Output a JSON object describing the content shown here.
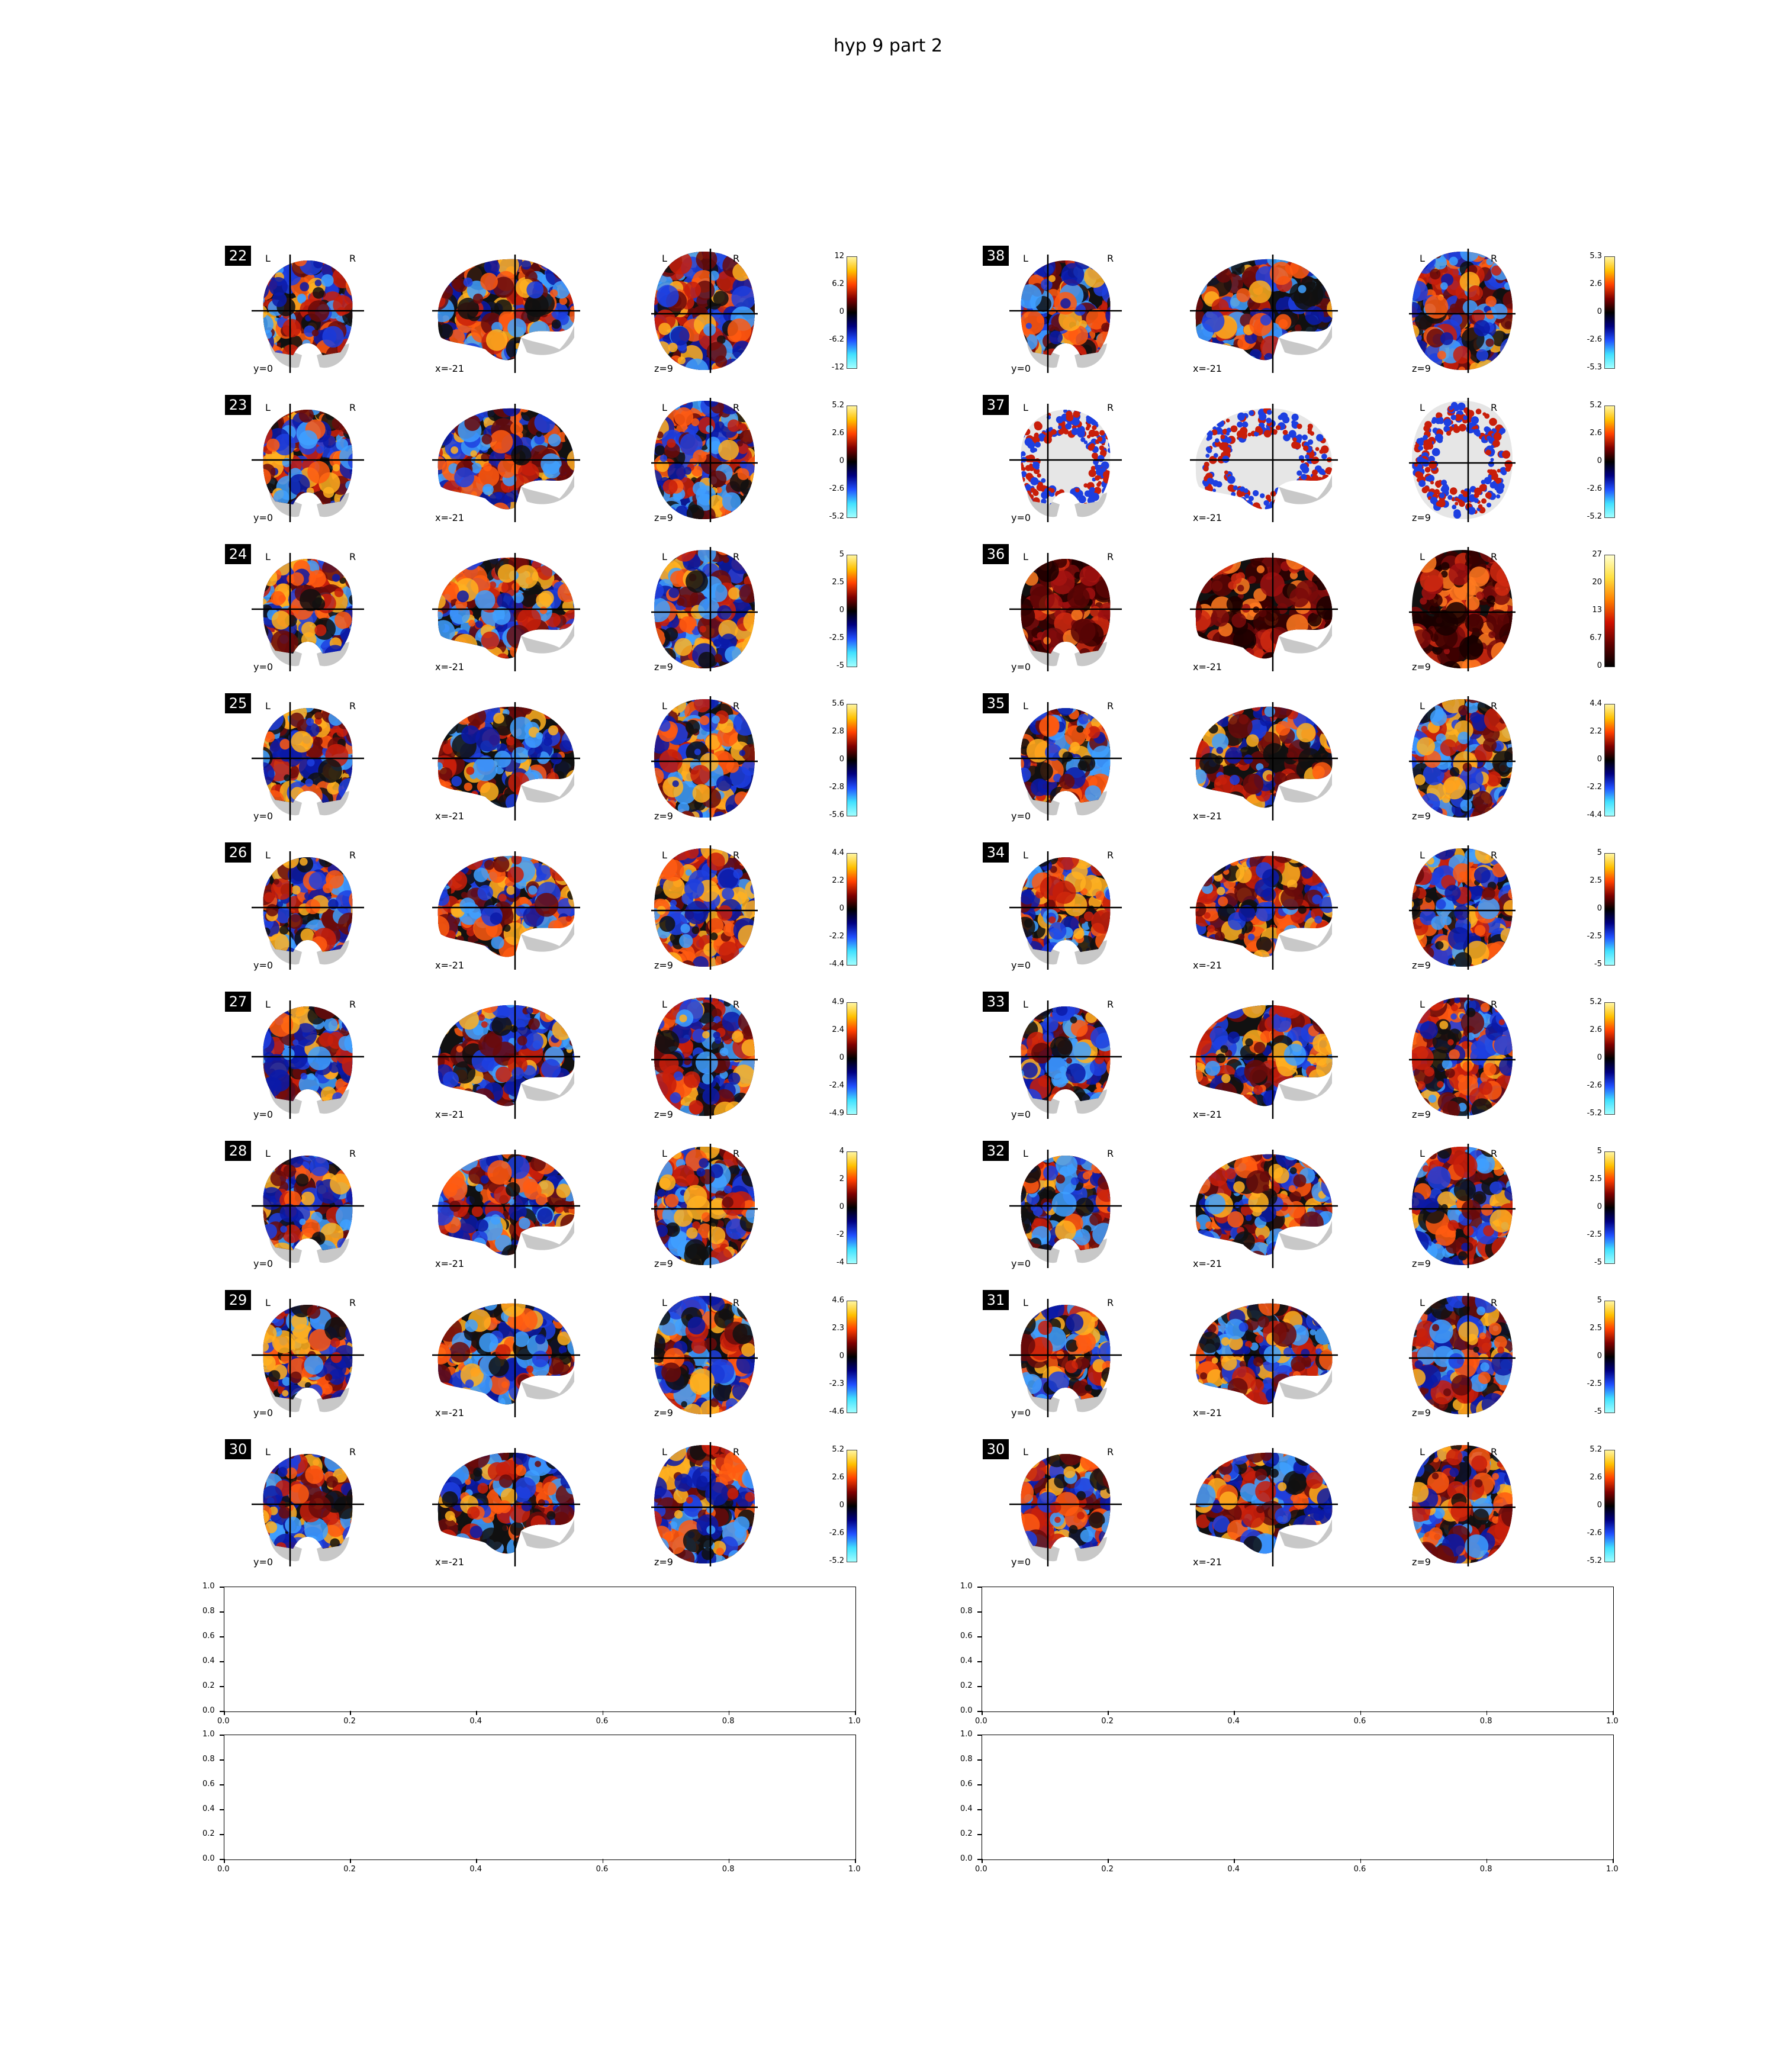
{
  "figure": {
    "title": "hyp 9 part 2",
    "columns": [
      {
        "panels": [
          {
            "id": "22",
            "ticks": [
              "12",
              "6.2",
              "0",
              "-6.2",
              "-12"
            ],
            "coords": [
              "y=0",
              "x=-21",
              "z=9"
            ],
            "labels": [
              "L",
              "R",
              "L",
              "R"
            ],
            "cmap": "diverging"
          },
          {
            "id": "23",
            "ticks": [
              "5.2",
              "2.6",
              "0",
              "-2.6",
              "-5.2"
            ],
            "coords": [
              "y=0",
              "x=-21",
              "z=9"
            ],
            "labels": [
              "L",
              "R",
              "L",
              "R"
            ],
            "cmap": "diverging"
          },
          {
            "id": "24",
            "ticks": [
              "5",
              "2.5",
              "0",
              "-2.5",
              "-5"
            ],
            "coords": [
              "y=0",
              "x=-21",
              "z=9"
            ],
            "labels": [
              "L",
              "R",
              "L",
              "R"
            ],
            "cmap": "diverging"
          },
          {
            "id": "25",
            "ticks": [
              "5.6",
              "2.8",
              "0",
              "-2.8",
              "-5.6"
            ],
            "coords": [
              "y=0",
              "x=-21",
              "z=9"
            ],
            "labels": [
              "L",
              "R",
              "L",
              "R"
            ],
            "cmap": "diverging"
          },
          {
            "id": "26",
            "ticks": [
              "4.4",
              "2.2",
              "0",
              "-2.2",
              "-4.4"
            ],
            "coords": [
              "y=0",
              "x=-21",
              "z=9"
            ],
            "labels": [
              "L",
              "R",
              "L",
              "R"
            ],
            "cmap": "diverging"
          },
          {
            "id": "27",
            "ticks": [
              "4.9",
              "2.4",
              "0",
              "-2.4",
              "-4.9"
            ],
            "coords": [
              "y=0",
              "x=-21",
              "z=9"
            ],
            "labels": [
              "L",
              "R",
              "L",
              "R"
            ],
            "cmap": "diverging"
          },
          {
            "id": "28",
            "ticks": [
              "4",
              "2",
              "0",
              "-2",
              "-4"
            ],
            "coords": [
              "y=0",
              "x=-21",
              "z=9"
            ],
            "labels": [
              "L",
              "R",
              "L",
              "R"
            ],
            "cmap": "diverging"
          },
          {
            "id": "29",
            "ticks": [
              "4.6",
              "2.3",
              "0",
              "-2.3",
              "-4.6"
            ],
            "coords": [
              "y=0",
              "x=-21",
              "z=9"
            ],
            "labels": [
              "L",
              "R",
              "L",
              "R"
            ],
            "cmap": "diverging"
          },
          {
            "id": "30",
            "ticks": [
              "5.2",
              "2.6",
              "0",
              "-2.6",
              "-5.2"
            ],
            "coords": [
              "y=0",
              "x=-21",
              "z=9"
            ],
            "labels": [
              "L",
              "R",
              "L",
              "R"
            ],
            "cmap": "diverging"
          }
        ]
      },
      {
        "panels": [
          {
            "id": "38",
            "ticks": [
              "5.3",
              "2.6",
              "0",
              "-2.6",
              "-5.3"
            ],
            "coords": [
              "y=0",
              "x=-21",
              "z=9"
            ],
            "labels": [
              "L",
              "R",
              "L",
              "R"
            ],
            "cmap": "diverging"
          },
          {
            "id": "37",
            "ticks": [
              "5.2",
              "2.6",
              "0",
              "-2.6",
              "-5.2"
            ],
            "coords": [
              "y=0",
              "x=-21",
              "z=9"
            ],
            "labels": [
              "L",
              "R",
              "L",
              "R"
            ],
            "cmap": "sparse"
          },
          {
            "id": "36",
            "ticks": [
              "27",
              "20",
              "13",
              "6.7",
              "0"
            ],
            "coords": [
              "y=0",
              "x=-21",
              "z=9"
            ],
            "labels": [
              "L",
              "R",
              "L",
              "R"
            ],
            "cmap": "hot"
          },
          {
            "id": "35",
            "ticks": [
              "4.4",
              "2.2",
              "0",
              "-2.2",
              "-4.4"
            ],
            "coords": [
              "y=0",
              "x=-21",
              "z=9"
            ],
            "labels": [
              "L",
              "R",
              "L",
              "R"
            ],
            "cmap": "diverging"
          },
          {
            "id": "34",
            "ticks": [
              "5",
              "2.5",
              "0",
              "-2.5",
              "-5"
            ],
            "coords": [
              "y=0",
              "x=-21",
              "z=9"
            ],
            "labels": [
              "L",
              "R",
              "L",
              "R"
            ],
            "cmap": "diverging"
          },
          {
            "id": "33",
            "ticks": [
              "5.2",
              "2.6",
              "0",
              "-2.6",
              "-5.2"
            ],
            "coords": [
              "y=0",
              "x=-21",
              "z=9"
            ],
            "labels": [
              "L",
              "R",
              "L",
              "R"
            ],
            "cmap": "diverging"
          },
          {
            "id": "32",
            "ticks": [
              "5",
              "2.5",
              "0",
              "-2.5",
              "-5"
            ],
            "coords": [
              "y=0",
              "x=-21",
              "z=9"
            ],
            "labels": [
              "L",
              "R",
              "L",
              "R"
            ],
            "cmap": "diverging"
          },
          {
            "id": "31",
            "ticks": [
              "5",
              "2.5",
              "0",
              "-2.5",
              "-5"
            ],
            "coords": [
              "y=0",
              "x=-21",
              "z=9"
            ],
            "labels": [
              "L",
              "R",
              "L",
              "R"
            ],
            "cmap": "diverging"
          },
          {
            "id": "30",
            "ticks": [
              "5.2",
              "2.6",
              "0",
              "-2.6",
              "-5.2"
            ],
            "coords": [
              "y=0",
              "x=-21",
              "z=9"
            ],
            "labels": [
              "L",
              "R",
              "L",
              "R"
            ],
            "cmap": "diverging"
          }
        ]
      }
    ],
    "empty_axes": {
      "count": 4,
      "xticks": [
        "0.0",
        "0.2",
        "0.4",
        "0.6",
        "0.8",
        "1.0"
      ],
      "yticks": [
        "1.0",
        "0.8",
        "0.6",
        "0.4",
        "0.2",
        "0.0"
      ],
      "xlim": [
        0,
        1
      ],
      "ylim": [
        0,
        1
      ]
    }
  }
}
